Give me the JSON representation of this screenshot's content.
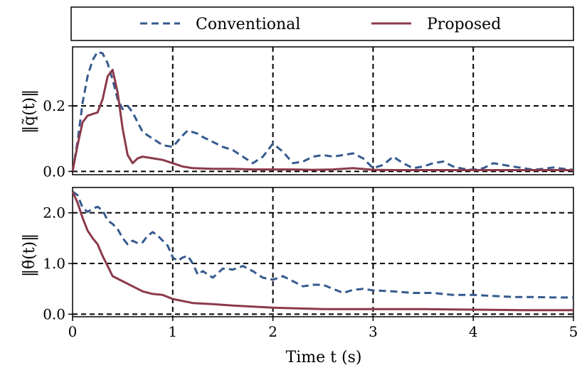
{
  "colors": {
    "conventional": "#355a8e",
    "proposed": "#8b3a4a",
    "grid": "#000000"
  },
  "legend": {
    "items": [
      {
        "label": "Conventional",
        "style": "dashed",
        "color": "#355a8e"
      },
      {
        "label": "Proposed",
        "style": "solid",
        "color": "#8b3a4a"
      }
    ]
  },
  "chart_data": [
    {
      "type": "line",
      "ylabel": "‖q̃(t)‖",
      "xlabel": "",
      "xlim": [
        0,
        5
      ],
      "ylim": [
        -0.01,
        0.38
      ],
      "xticks": [
        0,
        1,
        2,
        3,
        4,
        5
      ],
      "yticks": [
        0.0,
        0.2
      ],
      "ytick_labels": [
        "0.0",
        "0.2"
      ],
      "grid": true,
      "series": [
        {
          "name": "Conventional",
          "x": [
            0,
            0.05,
            0.1,
            0.15,
            0.2,
            0.25,
            0.3,
            0.35,
            0.4,
            0.45,
            0.5,
            0.55,
            0.6,
            0.65,
            0.7,
            0.8,
            0.9,
            1.0,
            1.1,
            1.15,
            1.25,
            1.3,
            1.4,
            1.5,
            1.6,
            1.7,
            1.8,
            1.9,
            2.0,
            2.1,
            2.2,
            2.3,
            2.4,
            2.5,
            2.6,
            2.7,
            2.8,
            2.9,
            3.0,
            3.1,
            3.2,
            3.3,
            3.4,
            3.5,
            3.6,
            3.7,
            3.8,
            3.9,
            4.0,
            4.1,
            4.2,
            4.3,
            4.4,
            4.5,
            4.6,
            4.7,
            4.8,
            4.9,
            5.0
          ],
          "y": [
            0.0,
            0.09,
            0.21,
            0.29,
            0.34,
            0.365,
            0.36,
            0.33,
            0.28,
            0.22,
            0.19,
            0.2,
            0.18,
            0.15,
            0.12,
            0.1,
            0.08,
            0.075,
            0.11,
            0.125,
            0.115,
            0.105,
            0.09,
            0.075,
            0.065,
            0.045,
            0.025,
            0.045,
            0.085,
            0.06,
            0.025,
            0.03,
            0.045,
            0.05,
            0.045,
            0.05,
            0.055,
            0.04,
            0.01,
            0.02,
            0.045,
            0.025,
            0.01,
            0.015,
            0.025,
            0.03,
            0.015,
            0.008,
            0.005,
            0.01,
            0.025,
            0.02,
            0.015,
            0.01,
            0.005,
            0.008,
            0.012,
            0.008,
            0.005
          ]
        },
        {
          "name": "Proposed",
          "x": [
            0,
            0.05,
            0.1,
            0.15,
            0.2,
            0.25,
            0.3,
            0.35,
            0.4,
            0.45,
            0.5,
            0.55,
            0.6,
            0.65,
            0.7,
            0.8,
            0.9,
            1.0,
            1.1,
            1.2,
            1.4,
            1.6,
            1.8,
            2.0,
            2.2,
            2.4,
            2.6,
            2.8,
            3.0,
            3.2,
            3.4,
            3.6,
            3.8,
            4.0,
            4.2,
            4.4,
            4.6,
            4.8,
            5.0
          ],
          "y": [
            0.0,
            0.08,
            0.15,
            0.17,
            0.175,
            0.18,
            0.22,
            0.29,
            0.31,
            0.24,
            0.13,
            0.05,
            0.025,
            0.04,
            0.045,
            0.04,
            0.035,
            0.025,
            0.015,
            0.01,
            0.008,
            0.008,
            0.006,
            0.006,
            0.006,
            0.005,
            0.006,
            0.01,
            0.005,
            0.004,
            0.004,
            0.004,
            0.004,
            0.004,
            0.004,
            0.004,
            0.004,
            0.004,
            0.004
          ]
        }
      ]
    },
    {
      "type": "line",
      "ylabel": "‖θ̃(t)‖",
      "xlabel": "Time t (s)",
      "xlim": [
        0,
        5
      ],
      "ylim": [
        -0.05,
        2.5
      ],
      "xticks": [
        0,
        1,
        2,
        3,
        4,
        5
      ],
      "xtick_labels": [
        "0",
        "1",
        "2",
        "3",
        "4",
        "5"
      ],
      "yticks": [
        0.0,
        1.0,
        2.0
      ],
      "ytick_labels": [
        "0.0",
        "1.0",
        "2.0"
      ],
      "grid": true,
      "series": [
        {
          "name": "Conventional",
          "x": [
            0,
            0.05,
            0.1,
            0.15,
            0.2,
            0.25,
            0.3,
            0.35,
            0.4,
            0.45,
            0.5,
            0.55,
            0.6,
            0.65,
            0.7,
            0.75,
            0.8,
            0.85,
            0.9,
            0.95,
            1.0,
            1.05,
            1.1,
            1.15,
            1.2,
            1.25,
            1.3,
            1.4,
            1.5,
            1.6,
            1.7,
            1.8,
            1.9,
            2.0,
            2.1,
            2.2,
            2.3,
            2.4,
            2.5,
            2.6,
            2.7,
            2.8,
            2.9,
            3.0,
            3.2,
            3.4,
            3.6,
            3.8,
            4.0,
            4.2,
            4.4,
            4.6,
            4.8,
            5.0
          ],
          "y": [
            2.42,
            2.35,
            2.1,
            2.02,
            2.08,
            2.12,
            2.05,
            1.85,
            1.78,
            1.68,
            1.5,
            1.38,
            1.45,
            1.4,
            1.42,
            1.55,
            1.62,
            1.55,
            1.45,
            1.35,
            1.12,
            1.05,
            1.12,
            1.15,
            1.0,
            0.78,
            0.85,
            0.72,
            0.9,
            0.88,
            0.95,
            0.85,
            0.72,
            0.68,
            0.75,
            0.65,
            0.55,
            0.58,
            0.58,
            0.5,
            0.42,
            0.48,
            0.5,
            0.47,
            0.45,
            0.42,
            0.42,
            0.38,
            0.38,
            0.36,
            0.34,
            0.34,
            0.33,
            0.33
          ]
        },
        {
          "name": "Proposed",
          "x": [
            0,
            0.05,
            0.1,
            0.15,
            0.2,
            0.25,
            0.3,
            0.35,
            0.4,
            0.45,
            0.5,
            0.6,
            0.7,
            0.8,
            0.9,
            1.0,
            1.2,
            1.4,
            1.6,
            1.8,
            2.0,
            2.5,
            3.0,
            3.5,
            4.0,
            4.5,
            5.0
          ],
          "y": [
            2.42,
            2.2,
            1.9,
            1.65,
            1.5,
            1.38,
            1.15,
            0.95,
            0.75,
            0.7,
            0.65,
            0.55,
            0.45,
            0.4,
            0.38,
            0.3,
            0.22,
            0.2,
            0.17,
            0.15,
            0.13,
            0.1,
            0.1,
            0.1,
            0.09,
            0.08,
            0.08
          ]
        }
      ]
    }
  ]
}
